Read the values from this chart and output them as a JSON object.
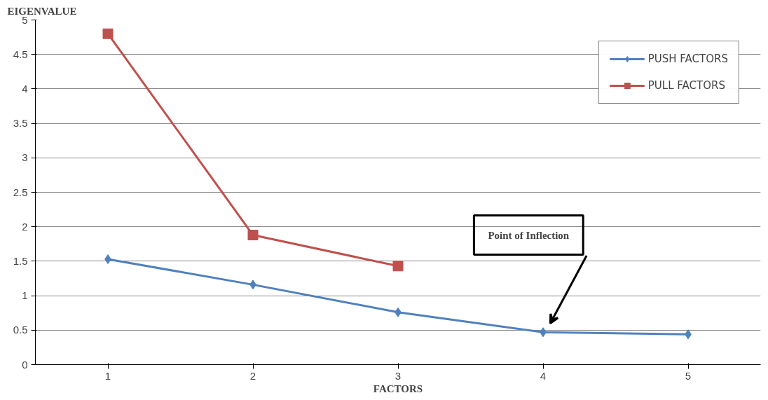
{
  "chart_data": {
    "type": "line",
    "ylabel": "EIGENVALUE",
    "xlabel": "FACTORS",
    "categories": [
      "1",
      "2",
      "3",
      "4",
      "5"
    ],
    "series": [
      {
        "name": "PUSH FACTORS",
        "color": "#4f81bd",
        "marker": "diamond",
        "values": [
          1.53,
          1.16,
          0.76,
          0.47,
          0.44
        ]
      },
      {
        "name": "PULL FACTORS",
        "color": "#c0504d",
        "marker": "square",
        "values": [
          4.8,
          1.88,
          1.43,
          null,
          null
        ]
      }
    ],
    "ylim": [
      0,
      5
    ],
    "yticks": [
      0,
      0.5,
      1,
      1.5,
      2,
      2.5,
      3,
      3.5,
      4,
      4.5,
      5
    ],
    "grid": "y",
    "legend": "top right",
    "annotations": [
      "Point of Inflection"
    ]
  }
}
